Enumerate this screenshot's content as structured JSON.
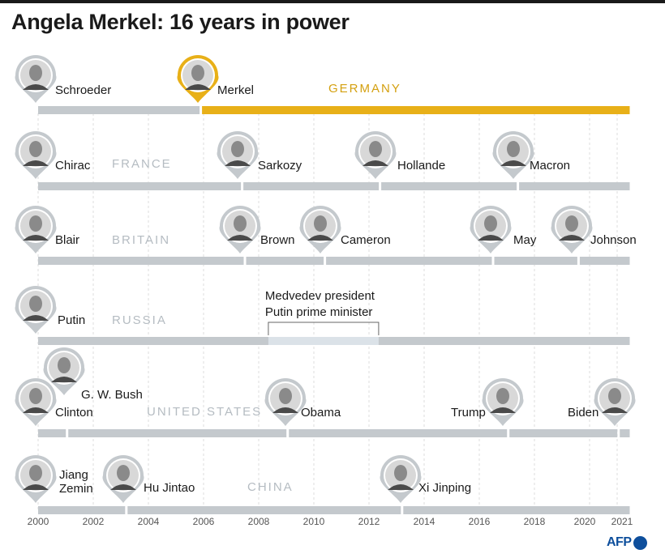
{
  "title": "Angela Merkel: 16 years in power",
  "colors": {
    "accent": "#e8b018",
    "bar": "#c4c9cd",
    "bar_highlight": "#dbe2e8",
    "country_label": "#b5bcc2",
    "germany_label": "#d4a010",
    "pin": "#c4c9cd",
    "grid": "#dedede"
  },
  "logo": {
    "text": "AFP"
  },
  "chart_data": {
    "type": "timeline",
    "x_ticks": [
      "2000",
      "2002",
      "2004",
      "2006",
      "2008",
      "2010",
      "2012",
      "2014",
      "2016",
      "2018",
      "2020",
      "2021"
    ],
    "xlim": [
      2000,
      2021.6
    ],
    "rows": [
      {
        "country": "GERMANY",
        "leaders": [
          {
            "name": "Schroeder",
            "start": 2000,
            "end": 2005.9
          },
          {
            "name": "Merkel",
            "start": 2005.9,
            "end": 2021.6,
            "highlight": true
          }
        ]
      },
      {
        "country": "FRANCE",
        "leaders": [
          {
            "name": "Chirac",
            "start": 2000,
            "end": 2007.4
          },
          {
            "name": "Sarkozy",
            "start": 2007.4,
            "end": 2012.4
          },
          {
            "name": "Hollande",
            "start": 2012.4,
            "end": 2017.4
          },
          {
            "name": "Macron",
            "start": 2017.4,
            "end": 2021.6
          }
        ]
      },
      {
        "country": "BRITAIN",
        "leaders": [
          {
            "name": "Blair",
            "start": 2000,
            "end": 2007.5
          },
          {
            "name": "Brown",
            "start": 2007.5,
            "end": 2010.4
          },
          {
            "name": "Cameron",
            "start": 2010.4,
            "end": 2016.5
          },
          {
            "name": "May",
            "start": 2016.5,
            "end": 2019.6
          },
          {
            "name": "Johnson",
            "start": 2019.6,
            "end": 2021.6
          }
        ]
      },
      {
        "country": "RUSSIA",
        "leaders": [
          {
            "name": "Putin",
            "start": 2000,
            "end": 2021.6
          }
        ],
        "highlight_span": {
          "start": 2008.35,
          "end": 2012.35,
          "label": [
            "Medvedev president",
            "Putin prime minister"
          ]
        }
      },
      {
        "country": "UNITED STATES",
        "leaders": [
          {
            "name": "Clinton",
            "start": 2000,
            "end": 2001.05
          },
          {
            "name": "G. W. Bush",
            "start": 2001.05,
            "end": 2009.05
          },
          {
            "name": "Obama",
            "start": 2009.05,
            "end": 2017.05
          },
          {
            "name": "Trump",
            "start": 2017.05,
            "end": 2021.05
          },
          {
            "name": "Biden",
            "start": 2021.05,
            "end": 2021.6
          }
        ]
      },
      {
        "country": "CHINA",
        "leaders": [
          {
            "name": "Jiang Zemin",
            "start": 2000,
            "end": 2003.2
          },
          {
            "name": "Hu Jintao",
            "start": 2003.2,
            "end": 2013.2
          },
          {
            "name": "Xi Jinping",
            "start": 2013.2,
            "end": 2021.6
          }
        ]
      }
    ]
  }
}
